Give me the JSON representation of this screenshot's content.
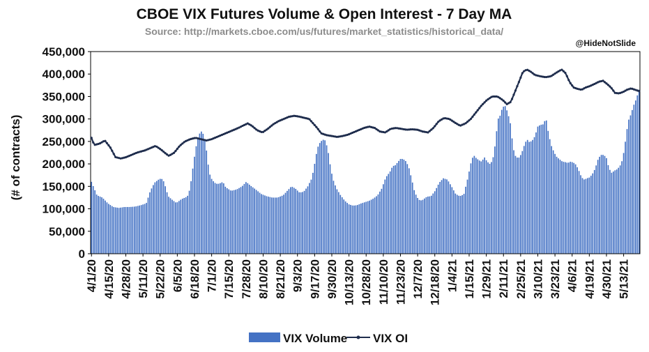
{
  "chart_data": {
    "type": "bar+line",
    "title": "CBOE VIX Futures Volume & Open Interest - 7 Day MA",
    "subtitle": "Source: http://markets.cboe.com/us/futures/market_statistics/historical_data/",
    "credit": "@HideNotSlide",
    "ylabel": "(# of contracts)",
    "ylim": [
      0,
      450000
    ],
    "yticks": [
      "0",
      "50,000",
      "100,000",
      "150,000",
      "200,000",
      "250,000",
      "300,000",
      "350,000",
      "400,000",
      "450,000"
    ],
    "ytick_values": [
      0,
      50000,
      100000,
      150000,
      200000,
      250000,
      300000,
      350000,
      400000,
      450000
    ],
    "x_tick_labels": [
      "4/1/20",
      "4/15/20",
      "4/28/20",
      "5/11/20",
      "5/22/20",
      "6/5/20",
      "6/18/20",
      "7/1/20",
      "7/15/20",
      "7/28/20",
      "8/10/20",
      "8/21/20",
      "9/3/20",
      "9/17/20",
      "9/30/20",
      "10/13/20",
      "10/28/20",
      "11/10/20",
      "11/23/20",
      "12/7/20",
      "12/18/20",
      "1/4/21",
      "1/15/21",
      "1/29/21",
      "2/11/21",
      "2/25/21",
      "3/10/21",
      "3/23/21",
      "4/6/21",
      "4/19/21",
      "4/30/21",
      "5/13/21"
    ],
    "x_tick_every": 10,
    "n_points": 320,
    "series": [
      {
        "name": "VIX Volume",
        "type": "bar",
        "color": "#4472c4",
        "anchors": [
          [
            0,
            160000
          ],
          [
            2,
            145000
          ],
          [
            4,
            130000
          ],
          [
            8,
            125000
          ],
          [
            12,
            112000
          ],
          [
            16,
            104000
          ],
          [
            20,
            102000
          ],
          [
            24,
            104000
          ],
          [
            28,
            104000
          ],
          [
            32,
            105000
          ],
          [
            36,
            108000
          ],
          [
            40,
            112000
          ],
          [
            43,
            140000
          ],
          [
            46,
            158000
          ],
          [
            49,
            165000
          ],
          [
            51,
            168000
          ],
          [
            53,
            160000
          ],
          [
            56,
            128000
          ],
          [
            59,
            120000
          ],
          [
            62,
            113000
          ],
          [
            66,
            122000
          ],
          [
            70,
            127000
          ],
          [
            72,
            145000
          ],
          [
            74,
            190000
          ],
          [
            76,
            232000
          ],
          [
            78,
            262000
          ],
          [
            80,
            273000
          ],
          [
            82,
            265000
          ],
          [
            84,
            230000
          ],
          [
            86,
            180000
          ],
          [
            88,
            165000
          ],
          [
            90,
            158000
          ],
          [
            92,
            155000
          ],
          [
            94,
            157000
          ],
          [
            96,
            160000
          ],
          [
            98,
            148000
          ],
          [
            102,
            140000
          ],
          [
            106,
            143000
          ],
          [
            110,
            150000
          ],
          [
            113,
            160000
          ],
          [
            116,
            152000
          ],
          [
            120,
            143000
          ],
          [
            124,
            133000
          ],
          [
            128,
            128000
          ],
          [
            132,
            125000
          ],
          [
            136,
            125000
          ],
          [
            140,
            130000
          ],
          [
            143,
            140000
          ],
          [
            146,
            150000
          ],
          [
            149,
            145000
          ],
          [
            152,
            136000
          ],
          [
            155,
            138000
          ],
          [
            158,
            150000
          ],
          [
            161,
            168000
          ],
          [
            163,
            200000
          ],
          [
            165,
            235000
          ],
          [
            167,
            248000
          ],
          [
            169,
            254000
          ],
          [
            171,
            252000
          ],
          [
            173,
            225000
          ],
          [
            175,
            185000
          ],
          [
            177,
            160000
          ],
          [
            179,
            145000
          ],
          [
            182,
            130000
          ],
          [
            185,
            118000
          ],
          [
            188,
            110000
          ],
          [
            191,
            107000
          ],
          [
            194,
            108000
          ],
          [
            197,
            112000
          ],
          [
            200,
            115000
          ],
          [
            203,
            118000
          ],
          [
            206,
            123000
          ],
          [
            209,
            130000
          ],
          [
            212,
            145000
          ],
          [
            215,
            170000
          ],
          [
            218,
            182000
          ],
          [
            220,
            195000
          ],
          [
            222,
            197000
          ],
          [
            224,
            205000
          ],
          [
            226,
            212000
          ],
          [
            228,
            210000
          ],
          [
            230,
            205000
          ],
          [
            232,
            190000
          ],
          [
            234,
            165000
          ],
          [
            236,
            138000
          ],
          [
            238,
            125000
          ],
          [
            240,
            118000
          ],
          [
            242,
            120000
          ],
          [
            245,
            127000
          ],
          [
            248,
            128000
          ],
          [
            251,
            140000
          ],
          [
            254,
            158000
          ],
          [
            257,
            168000
          ],
          [
            260,
            165000
          ],
          [
            263,
            150000
          ],
          [
            266,
            133000
          ],
          [
            269,
            128000
          ],
          [
            272,
            132000
          ],
          [
            275,
            170000
          ],
          [
            277,
            200000
          ],
          [
            279,
            220000
          ],
          [
            281,
            213000
          ],
          [
            283,
            208000
          ],
          [
            285,
            205000
          ],
          [
            287,
            215000
          ],
          [
            289,
            205000
          ],
          [
            291,
            200000
          ],
          [
            293,
            207000
          ],
          [
            295,
            245000
          ],
          [
            296,
            275000
          ],
          [
            297,
            300000
          ],
          [
            299,
            310000
          ],
          [
            300,
            325000
          ],
          [
            302,
            330000
          ],
          [
            304,
            315000
          ],
          [
            306,
            290000
          ],
          [
            308,
            235000
          ],
          [
            310,
            215000
          ],
          [
            312,
            213000
          ],
          [
            314,
            222000
          ],
          [
            316,
            240000
          ],
          [
            318,
            255000
          ],
          [
            320,
            248000
          ],
          [
            322,
            252000
          ],
          [
            324,
            262000
          ],
          [
            326,
            283000
          ],
          [
            328,
            287000
          ],
          [
            330,
            288000
          ],
          [
            332,
            302000
          ],
          [
            334,
            265000
          ],
          [
            336,
            240000
          ],
          [
            338,
            225000
          ],
          [
            340,
            215000
          ],
          [
            342,
            210000
          ],
          [
            344,
            205000
          ],
          [
            346,
            204000
          ],
          [
            348,
            202000
          ],
          [
            350,
            205000
          ],
          [
            352,
            203000
          ],
          [
            354,
            198000
          ],
          [
            356,
            185000
          ],
          [
            358,
            170000
          ],
          [
            360,
            165000
          ],
          [
            362,
            168000
          ],
          [
            364,
            170000
          ],
          [
            366,
            178000
          ],
          [
            368,
            190000
          ],
          [
            370,
            210000
          ],
          [
            372,
            220000
          ],
          [
            374,
            220000
          ],
          [
            376,
            215000
          ],
          [
            378,
            190000
          ],
          [
            380,
            180000
          ],
          [
            382,
            185000
          ],
          [
            384,
            188000
          ],
          [
            386,
            195000
          ],
          [
            388,
            210000
          ],
          [
            390,
            250000
          ],
          [
            392,
            295000
          ],
          [
            394,
            310000
          ],
          [
            396,
            330000
          ],
          [
            398,
            345000
          ],
          [
            400,
            365000
          ]
        ],
        "anchor_scale": 320,
        "anchor_src_max": 400
      },
      {
        "name": "VIX OI",
        "type": "line",
        "color": "#1f2d4d",
        "anchors": [
          [
            0,
            258000
          ],
          [
            2,
            242000
          ],
          [
            6,
            245000
          ],
          [
            10,
            252000
          ],
          [
            14,
            237000
          ],
          [
            18,
            215000
          ],
          [
            22,
            212000
          ],
          [
            26,
            215000
          ],
          [
            30,
            220000
          ],
          [
            34,
            225000
          ],
          [
            40,
            230000
          ],
          [
            44,
            235000
          ],
          [
            48,
            240000
          ],
          [
            52,
            232000
          ],
          [
            56,
            222000
          ],
          [
            58,
            218000
          ],
          [
            62,
            225000
          ],
          [
            66,
            240000
          ],
          [
            70,
            250000
          ],
          [
            74,
            255000
          ],
          [
            78,
            258000
          ],
          [
            82,
            255000
          ],
          [
            86,
            252000
          ],
          [
            90,
            255000
          ],
          [
            94,
            260000
          ],
          [
            98,
            265000
          ],
          [
            102,
            270000
          ],
          [
            106,
            275000
          ],
          [
            110,
            280000
          ],
          [
            114,
            286000
          ],
          [
            117,
            290000
          ],
          [
            120,
            285000
          ],
          [
            124,
            275000
          ],
          [
            128,
            270000
          ],
          [
            132,
            278000
          ],
          [
            136,
            288000
          ],
          [
            140,
            295000
          ],
          [
            144,
            300000
          ],
          [
            148,
            305000
          ],
          [
            152,
            307000
          ],
          [
            156,
            305000
          ],
          [
            160,
            302000
          ],
          [
            163,
            300000
          ],
          [
            166,
            290000
          ],
          [
            169,
            280000
          ],
          [
            172,
            268000
          ],
          [
            176,
            264000
          ],
          [
            180,
            262000
          ],
          [
            184,
            260000
          ],
          [
            188,
            262000
          ],
          [
            192,
            265000
          ],
          [
            196,
            270000
          ],
          [
            200,
            275000
          ],
          [
            204,
            280000
          ],
          [
            208,
            283000
          ],
          [
            212,
            280000
          ],
          [
            216,
            272000
          ],
          [
            220,
            270000
          ],
          [
            224,
            278000
          ],
          [
            228,
            280000
          ],
          [
            232,
            278000
          ],
          [
            236,
            276000
          ],
          [
            240,
            277000
          ],
          [
            244,
            276000
          ],
          [
            248,
            272000
          ],
          [
            252,
            270000
          ],
          [
            256,
            280000
          ],
          [
            260,
            295000
          ],
          [
            264,
            302000
          ],
          [
            268,
            300000
          ],
          [
            272,
            292000
          ],
          [
            276,
            285000
          ],
          [
            280,
            290000
          ],
          [
            284,
            300000
          ],
          [
            288,
            315000
          ],
          [
            292,
            330000
          ],
          [
            296,
            342000
          ],
          [
            300,
            350000
          ],
          [
            304,
            350000
          ],
          [
            308,
            342000
          ],
          [
            311,
            333000
          ],
          [
            314,
            338000
          ],
          [
            317,
            360000
          ],
          [
            320,
            382000
          ],
          [
            323,
            405000
          ],
          [
            326,
            410000
          ],
          [
            329,
            405000
          ],
          [
            332,
            398000
          ],
          [
            336,
            395000
          ],
          [
            340,
            393000
          ],
          [
            344,
            395000
          ],
          [
            348,
            403000
          ],
          [
            352,
            410000
          ],
          [
            355,
            402000
          ],
          [
            358,
            382000
          ],
          [
            361,
            370000
          ],
          [
            364,
            367000
          ],
          [
            367,
            365000
          ],
          [
            370,
            370000
          ],
          [
            373,
            373000
          ],
          [
            376,
            377000
          ],
          [
            380,
            383000
          ],
          [
            383,
            385000
          ],
          [
            386,
            378000
          ],
          [
            389,
            370000
          ],
          [
            392,
            358000
          ],
          [
            395,
            357000
          ],
          [
            398,
            360000
          ],
          [
            401,
            365000
          ],
          [
            404,
            368000
          ],
          [
            407,
            365000
          ],
          [
            410,
            362000
          ]
        ],
        "anchor_scale": 320,
        "anchor_src_max": 410
      }
    ],
    "legend": [
      "VIX Volume",
      "VIX OI"
    ],
    "legend_position": "bottom-center"
  }
}
